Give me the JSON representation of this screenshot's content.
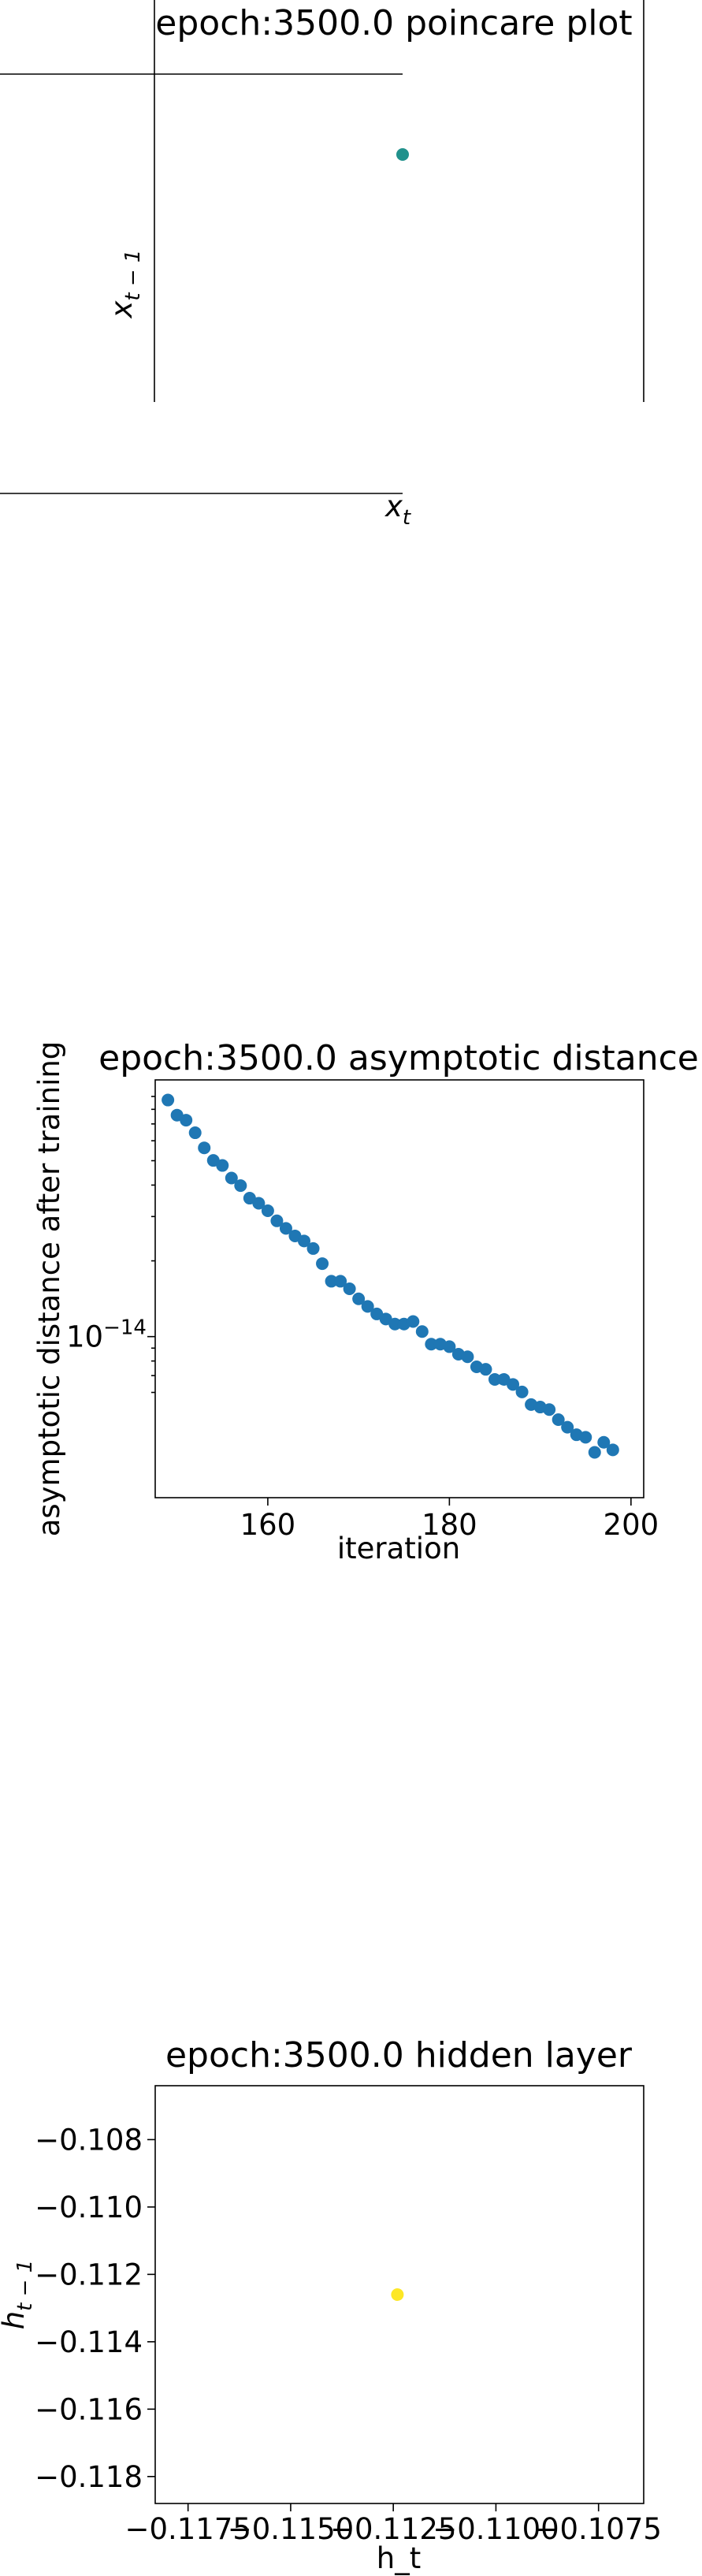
{
  "chart_data": [
    {
      "type": "scatter",
      "title": "epoch:3500.0 poincare plot",
      "xlabel": "x_t",
      "ylabel": "x_{t-1}",
      "points": [
        {
          "x": 0.0,
          "y": 0.0
        }
      ],
      "point_color": "#21918c",
      "grid": false,
      "axes_style": "centered spines"
    },
    {
      "type": "scatter",
      "title": "epoch:3500.0 asymptotic distance",
      "xlabel": "iteration",
      "ylabel": "asymptotic distance after training",
      "y_scale": "log",
      "xlim": [
        147.6,
        201.4
      ],
      "ylim_log10": [
        -14.64,
        -12.98
      ],
      "x_ticks": [
        {
          "value": 160,
          "label": "160"
        },
        {
          "value": 180,
          "label": "180"
        },
        {
          "value": 200,
          "label": "200"
        }
      ],
      "y_ticks": [
        {
          "value_log10": -14,
          "label_base": "10",
          "label_exp": "−14"
        }
      ],
      "point_color": "#1f77b4",
      "points": [
        {
          "x": 149,
          "y_log10": -13.06
        },
        {
          "x": 150,
          "y_log10": -13.12
        },
        {
          "x": 151,
          "y_log10": -13.14
        },
        {
          "x": 152,
          "y_log10": -13.19
        },
        {
          "x": 153,
          "y_log10": -13.25
        },
        {
          "x": 154,
          "y_log10": -13.3
        },
        {
          "x": 155,
          "y_log10": -13.32
        },
        {
          "x": 156,
          "y_log10": -13.37
        },
        {
          "x": 157,
          "y_log10": -13.4
        },
        {
          "x": 158,
          "y_log10": -13.45
        },
        {
          "x": 159,
          "y_log10": -13.47
        },
        {
          "x": 160,
          "y_log10": -13.5
        },
        {
          "x": 161,
          "y_log10": -13.54
        },
        {
          "x": 162,
          "y_log10": -13.57
        },
        {
          "x": 163,
          "y_log10": -13.6
        },
        {
          "x": 164,
          "y_log10": -13.62
        },
        {
          "x": 165,
          "y_log10": -13.65
        },
        {
          "x": 166,
          "y_log10": -13.71
        },
        {
          "x": 167,
          "y_log10": -13.78
        },
        {
          "x": 168,
          "y_log10": -13.78
        },
        {
          "x": 169,
          "y_log10": -13.81
        },
        {
          "x": 170,
          "y_log10": -13.85
        },
        {
          "x": 171,
          "y_log10": -13.88
        },
        {
          "x": 172,
          "y_log10": -13.91
        },
        {
          "x": 173,
          "y_log10": -13.93
        },
        {
          "x": 174,
          "y_log10": -13.95
        },
        {
          "x": 175,
          "y_log10": -13.95
        },
        {
          "x": 176,
          "y_log10": -13.94
        },
        {
          "x": 177,
          "y_log10": -13.98
        },
        {
          "x": 178,
          "y_log10": -14.03
        },
        {
          "x": 179,
          "y_log10": -14.03
        },
        {
          "x": 180,
          "y_log10": -14.04
        },
        {
          "x": 181,
          "y_log10": -14.07
        },
        {
          "x": 182,
          "y_log10": -14.08
        },
        {
          "x": 183,
          "y_log10": -14.12
        },
        {
          "x": 184,
          "y_log10": -14.13
        },
        {
          "x": 185,
          "y_log10": -14.17
        },
        {
          "x": 186,
          "y_log10": -14.17
        },
        {
          "x": 187,
          "y_log10": -14.19
        },
        {
          "x": 188,
          "y_log10": -14.22
        },
        {
          "x": 189,
          "y_log10": -14.27
        },
        {
          "x": 190,
          "y_log10": -14.28
        },
        {
          "x": 191,
          "y_log10": -14.29
        },
        {
          "x": 192,
          "y_log10": -14.33
        },
        {
          "x": 193,
          "y_log10": -14.36
        },
        {
          "x": 194,
          "y_log10": -14.39
        },
        {
          "x": 195,
          "y_log10": -14.4
        },
        {
          "x": 196,
          "y_log10": -14.46
        },
        {
          "x": 197,
          "y_log10": -14.42
        },
        {
          "x": 198,
          "y_log10": -14.45
        }
      ],
      "grid": false
    },
    {
      "type": "scatter",
      "title": "epoch:3500.0 hidden layer",
      "xlabel": "h_t",
      "ylabel": "h_{t-1}",
      "xlim": [
        -0.1183,
        -0.1064
      ],
      "ylim": [
        -0.1188,
        -0.1064
      ],
      "x_ticks": [
        {
          "value": -0.1175,
          "label": "−0.1175"
        },
        {
          "value": -0.115,
          "label": "−0.1150"
        },
        {
          "value": -0.1125,
          "label": "−0.1125"
        },
        {
          "value": -0.11,
          "label": "−0.1100"
        },
        {
          "value": -0.1075,
          "label": "−0.1075"
        }
      ],
      "y_ticks": [
        {
          "value": -0.108,
          "label": "−0.108"
        },
        {
          "value": -0.11,
          "label": "−0.110"
        },
        {
          "value": -0.112,
          "label": "−0.112"
        },
        {
          "value": -0.114,
          "label": "−0.114"
        },
        {
          "value": -0.116,
          "label": "−0.116"
        },
        {
          "value": -0.118,
          "label": "−0.118"
        }
      ],
      "point_color": "#fde725",
      "points": [
        {
          "x": -0.1124,
          "y": -0.1126
        }
      ],
      "grid": false
    }
  ]
}
